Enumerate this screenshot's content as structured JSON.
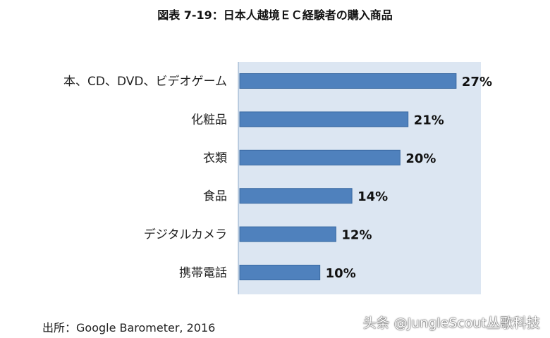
{
  "chart_data": {
    "type": "bar",
    "orientation": "horizontal",
    "title": "図表 7-19：日本人越境ＥＣ経験者の購入商品",
    "categories": [
      "本、CD、DVD、ビデオゲーム",
      "化粧品",
      "衣類",
      "食品",
      "デジタルカメラ",
      "携帯電話"
    ],
    "values": [
      27,
      21,
      20,
      14,
      12,
      10
    ],
    "value_labels": [
      "27%",
      "21%",
      "20%",
      "14%",
      "12%",
      "10%"
    ],
    "unit": "%",
    "xlim": [
      0,
      30
    ],
    "xlabel": "",
    "ylabel": "",
    "grid": false,
    "legend": "none",
    "colors": {
      "bar": "#4f81bd",
      "bar_edge": "#3a6aa2",
      "plot_bg": "#dce6f2"
    }
  },
  "source": "出所：Google Barometer, 2016",
  "watermark": "头条 @JungleScout丛歌科技"
}
